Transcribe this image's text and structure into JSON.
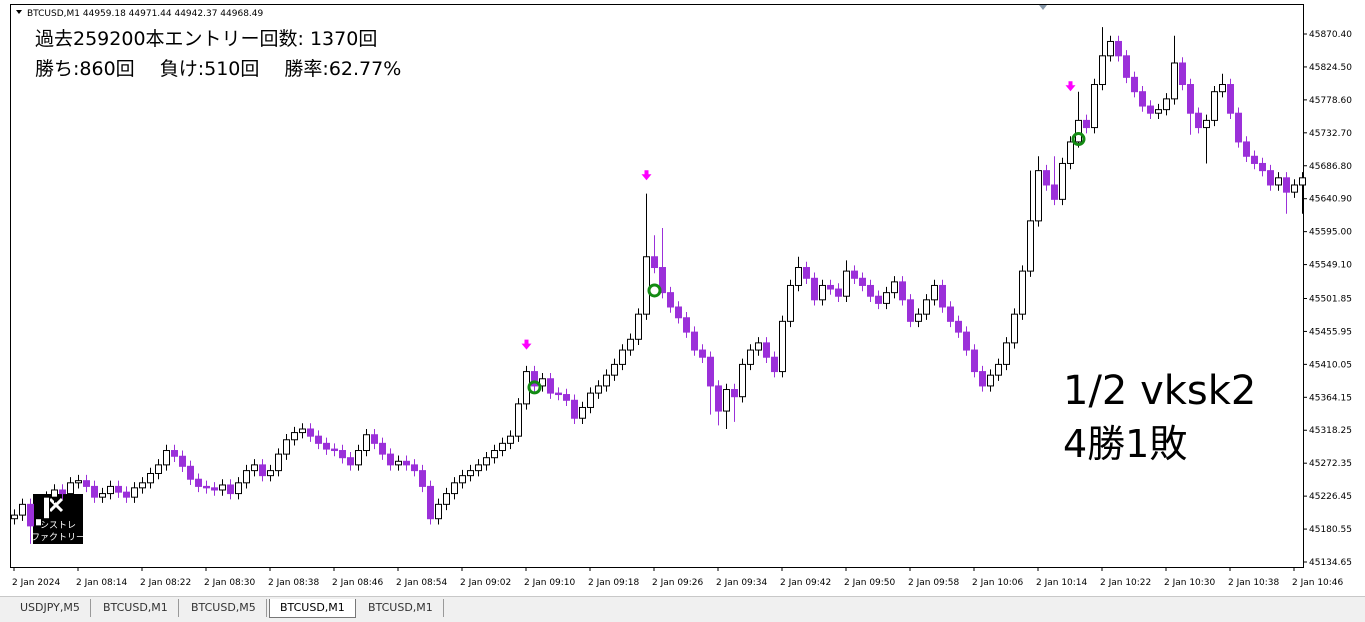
{
  "window": {
    "header": "BTCUSD,M1  44959.18 44971.44 44942.37 44968.49",
    "info": [
      "過去259200本エントリー回数: 1370回",
      "勝ち:860回　 負け:510回　 勝率:62.77%"
    ],
    "overlay": [
      "1/2 vksk2",
      "4勝1敗"
    ],
    "logo": [
      "シストレ",
      "ファクトリー"
    ],
    "tabs": [
      "USDJPY,M5",
      "BTCUSD,M1",
      "BTCUSD,M5",
      "BTCUSD,M1",
      "BTCUSD,M1"
    ],
    "active_tab": 3
  },
  "chart_data": {
    "type": "candlestick",
    "bull_color": "#ffffff",
    "bear_color": "#9b30d9",
    "entry_color": "#ff00ff",
    "exit_color": "#138a13",
    "ylim": [
      45127.7,
      45910.8
    ],
    "yticks": [
      45134.65,
      {
        "value": 45180.55,
        "label": "45180.55"
      },
      {
        "value": 45226.45,
        "label": "45226.45"
      },
      {
        "value": 45272.35,
        "label": "45272.35"
      },
      {
        "value": 45318.25,
        "label": "45318.25"
      },
      {
        "value": 45364.15,
        "label": "45364.15"
      },
      {
        "value": 45410.05,
        "label": "45410.05"
      },
      {
        "value": 45455.95,
        "label": "45455.95"
      },
      {
        "value": 45501.85,
        "label": "45501.85"
      },
      {
        "value": 45549.1,
        "label": "45549.10"
      },
      {
        "value": 45595,
        "label": "45595.00"
      },
      {
        "value": 45640.9,
        "label": "45640.90"
      },
      {
        "value": 45686.8,
        "label": "45686.80"
      },
      {
        "value": 45732.7,
        "label": "45732.70"
      },
      {
        "value": 45778.6,
        "label": "45778.60"
      },
      {
        "value": 45824.5,
        "label": "45824.50"
      },
      {
        "value": 45870.4,
        "label": "45870.40"
      }
    ],
    "categories": [
      "2 Jan 2024",
      null,
      null,
      null,
      null,
      null,
      null,
      null,
      "2 Jan 08:14",
      null,
      null,
      null,
      null,
      null,
      null,
      null,
      "2 Jan 08:22",
      null,
      null,
      null,
      null,
      null,
      null,
      null,
      "2 Jan 08:30",
      null,
      null,
      null,
      null,
      null,
      null,
      null,
      "2 Jan 08:38",
      null,
      null,
      null,
      null,
      null,
      null,
      null,
      "2 Jan 08:46",
      null,
      null,
      null,
      null,
      null,
      null,
      null,
      "2 Jan 08:54",
      null,
      null,
      null,
      null,
      null,
      null,
      null,
      "2 Jan 09:02",
      null,
      null,
      null,
      null,
      null,
      null,
      null,
      "2 Jan 09:10",
      null,
      null,
      null,
      null,
      null,
      null,
      null,
      "2 Jan 09:18",
      null,
      null,
      null,
      null,
      null,
      null,
      null,
      "2 Jan 09:26",
      null,
      null,
      null,
      null,
      null,
      null,
      null,
      "2 Jan 09:34",
      null,
      null,
      null,
      null,
      null,
      null,
      null,
      "2 Jan 09:42",
      null,
      null,
      null,
      null,
      null,
      null,
      null,
      "2 Jan 09:50",
      null,
      null,
      null,
      null,
      null,
      null,
      null,
      "2 Jan 09:58",
      null,
      null,
      null,
      null,
      null,
      null,
      null,
      "2 Jan 10:06",
      null,
      null,
      null,
      null,
      null,
      null,
      null,
      "2 Jan 10:14",
      null,
      null,
      null,
      null,
      null,
      null,
      null,
      "2 Jan 10:22",
      null,
      null,
      null,
      null,
      null,
      null,
      null,
      "2 Jan 10:30",
      null,
      null,
      null,
      null,
      null,
      null,
      null,
      "2 Jan 10:38",
      null,
      null,
      null,
      null,
      null,
      null,
      null,
      "2 Jan 10:46",
      null
    ],
    "open": [
      45195,
      45200,
      45215,
      45185,
      45195,
      45225,
      45235,
      45230,
      45245,
      45248,
      45240,
      45225,
      45230,
      45240,
      45232,
      45225,
      45238,
      45245,
      45258,
      45270,
      45290,
      45282,
      45268,
      45250,
      45240,
      45238,
      45235,
      45242,
      45230,
      45245,
      45262,
      45270,
      45255,
      45262,
      45285,
      45305,
      45315,
      45320,
      45310,
      45300,
      45292,
      45290,
      45280,
      45270,
      45290,
      45312,
      45300,
      45285,
      45270,
      45275,
      45270,
      45262,
      45240,
      45195,
      45215,
      45230,
      45245,
      45255,
      45262,
      45270,
      45280,
      45290,
      45300,
      45310,
      45355,
      45400,
      45380,
      45390,
      45370,
      45368,
      45360,
      45335,
      45350,
      45370,
      45380,
      45395,
      45410,
      45430,
      45445,
      45480,
      45560,
      45545,
      45510,
      45490,
      45475,
      45455,
      45430,
      45420,
      45380,
      45345,
      45375,
      45365,
      45410,
      45430,
      45440,
      45420,
      45400,
      45470,
      45520,
      45545,
      45530,
      45500,
      45520,
      45515,
      45505,
      45540,
      45530,
      45520,
      45505,
      45495,
      45510,
      45525,
      45500,
      45470,
      45480,
      45500,
      45520,
      45490,
      45470,
      45455,
      45430,
      45400,
      45380,
      45395,
      45410,
      45440,
      45480,
      45540,
      45610,
      45680,
      45660,
      45640,
      45690,
      45720,
      45750,
      45740,
      45800,
      45840,
      45860,
      45840,
      45810,
      45790,
      45770,
      45760,
      45765,
      45780,
      45830,
      45800,
      45760,
      45740,
      45750,
      45790,
      45800,
      45760,
      45720,
      45700,
      45690,
      45680,
      45660,
      45670,
      45650,
      45660
    ],
    "high": [
      45208,
      45223,
      45223,
      45203,
      45233,
      45243,
      45243,
      45253,
      45256,
      45256,
      45248,
      45238,
      45248,
      45248,
      45240,
      45246,
      45253,
      45266,
      45278,
      45298,
      45298,
      45290,
      45276,
      45258,
      45248,
      45246,
      45250,
      45250,
      45253,
      45270,
      45278,
      45278,
      45270,
      45293,
      45313,
      45323,
      45328,
      45328,
      45318,
      45308,
      45300,
      45298,
      45288,
      45298,
      45320,
      45320,
      45308,
      45293,
      45283,
      45283,
      45278,
      45270,
      45248,
      45223,
      45238,
      45253,
      45263,
      45270,
      45278,
      45288,
      45298,
      45308,
      45318,
      45363,
      45408,
      45408,
      45398,
      45398,
      45378,
      45376,
      45368,
      45358,
      45378,
      45388,
      45403,
      45418,
      45438,
      45453,
      45488,
      45648,
      45590,
      45600,
      45518,
      45498,
      45483,
      45463,
      45438,
      45428,
      45388,
      45383,
      45383,
      45418,
      45438,
      45448,
      45448,
      45428,
      45478,
      45528,
      45560,
      45553,
      45538,
      45528,
      45528,
      45523,
      45555,
      45548,
      45538,
      45528,
      45513,
      45518,
      45533,
      45533,
      45508,
      45488,
      45508,
      45528,
      45528,
      45498,
      45478,
      45463,
      45438,
      45408,
      45403,
      45418,
      45448,
      45488,
      45548,
      45680,
      45700,
      45688,
      45700,
      45698,
      45728,
      45790,
      45758,
      45808,
      45880,
      45868,
      45868,
      45848,
      45818,
      45798,
      45778,
      45773,
      45788,
      45868,
      45838,
      45808,
      45768,
      45758,
      45798,
      45815,
      45808,
      45768,
      45728,
      45708,
      45698,
      45688,
      45678,
      45678,
      45668,
      45678
    ],
    "low": [
      45187,
      45192,
      45160,
      45177,
      45187,
      45217,
      45222,
      45222,
      45237,
      45232,
      45217,
      45217,
      45222,
      45224,
      45217,
      45217,
      45230,
      45237,
      45250,
      45262,
      45274,
      45260,
      45242,
      45232,
      45230,
      45227,
      45227,
      45222,
      45222,
      45237,
      45254,
      45247,
      45247,
      45254,
      45277,
      45297,
      45307,
      45302,
      45292,
      45284,
      45282,
      45272,
      45262,
      45262,
      45282,
      45292,
      45277,
      45262,
      45262,
      45262,
      45254,
      45232,
      45187,
      45187,
      45207,
      45222,
      45237,
      45247,
      45254,
      45262,
      45272,
      45282,
      45292,
      45302,
      45347,
      45372,
      45372,
      45362,
      45360,
      45352,
      45327,
      45327,
      45342,
      45362,
      45372,
      45387,
      45402,
      45422,
      45437,
      45472,
      45537,
      45502,
      45482,
      45467,
      45447,
      45422,
      45412,
      45340,
      45325,
      45320,
      45330,
      45357,
      45402,
      45422,
      45412,
      45392,
      45392,
      45462,
      45512,
      45522,
      45492,
      45492,
      45507,
      45497,
      45497,
      45522,
      45512,
      45497,
      45487,
      45487,
      45502,
      45492,
      45462,
      45462,
      45472,
      45492,
      45482,
      45462,
      45447,
      45422,
      45392,
      45372,
      45372,
      45387,
      45402,
      45432,
      45472,
      45532,
      45602,
      45652,
      45632,
      45632,
      45682,
      45712,
      45732,
      45732,
      45792,
      45832,
      45832,
      45802,
      45782,
      45762,
      45752,
      45752,
      45757,
      45772,
      45792,
      45730,
      45732,
      45690,
      45742,
      45782,
      45752,
      45712,
      45692,
      45682,
      45672,
      45652,
      45652,
      45620,
      45642,
      45620
    ],
    "close": [
      45200,
      45215,
      45185,
      45195,
      45225,
      45235,
      45230,
      45245,
      45248,
      45240,
      45225,
      45230,
      45240,
      45232,
      45225,
      45238,
      45245,
      45258,
      45270,
      45290,
      45282,
      45268,
      45250,
      45240,
      45238,
      45235,
      45242,
      45230,
      45245,
      45262,
      45270,
      45255,
      45262,
      45285,
      45305,
      45315,
      45320,
      45310,
      45300,
      45292,
      45290,
      45280,
      45270,
      45290,
      45312,
      45300,
      45285,
      45270,
      45275,
      45270,
      45262,
      45240,
      45195,
      45215,
      45230,
      45245,
      45255,
      45262,
      45270,
      45280,
      45290,
      45300,
      45310,
      45355,
      45400,
      45380,
      45390,
      45370,
      45368,
      45360,
      45335,
      45350,
      45370,
      45380,
      45395,
      45410,
      45430,
      45445,
      45480,
      45560,
      45545,
      45510,
      45490,
      45475,
      45455,
      45430,
      45420,
      45380,
      45345,
      45375,
      45365,
      45410,
      45430,
      45440,
      45420,
      45400,
      45470,
      45520,
      45545,
      45530,
      45500,
      45520,
      45515,
      45505,
      45540,
      45530,
      45520,
      45505,
      45495,
      45510,
      45525,
      45500,
      45470,
      45480,
      45500,
      45520,
      45490,
      45470,
      45455,
      45430,
      45400,
      45380,
      45395,
      45410,
      45440,
      45480,
      45540,
      45610,
      45680,
      45660,
      45640,
      45690,
      45720,
      45750,
      45740,
      45800,
      45840,
      45860,
      45840,
      45810,
      45790,
      45770,
      45760,
      45765,
      45780,
      45830,
      45800,
      45760,
      45740,
      45750,
      45790,
      45800,
      45760,
      45720,
      45700,
      45690,
      45680,
      45660,
      45670,
      45650,
      45660,
      45670
    ],
    "entries": [
      {
        "candle": 64,
        "price": 45432
      },
      {
        "candle": 79,
        "price": 45668
      },
      {
        "candle": 132,
        "price": 45792
      }
    ],
    "exits": [
      {
        "candle": 65,
        "price": 45378
      },
      {
        "candle": 80,
        "price": 45513
      },
      {
        "candle": 133,
        "price": 45724
      }
    ]
  }
}
